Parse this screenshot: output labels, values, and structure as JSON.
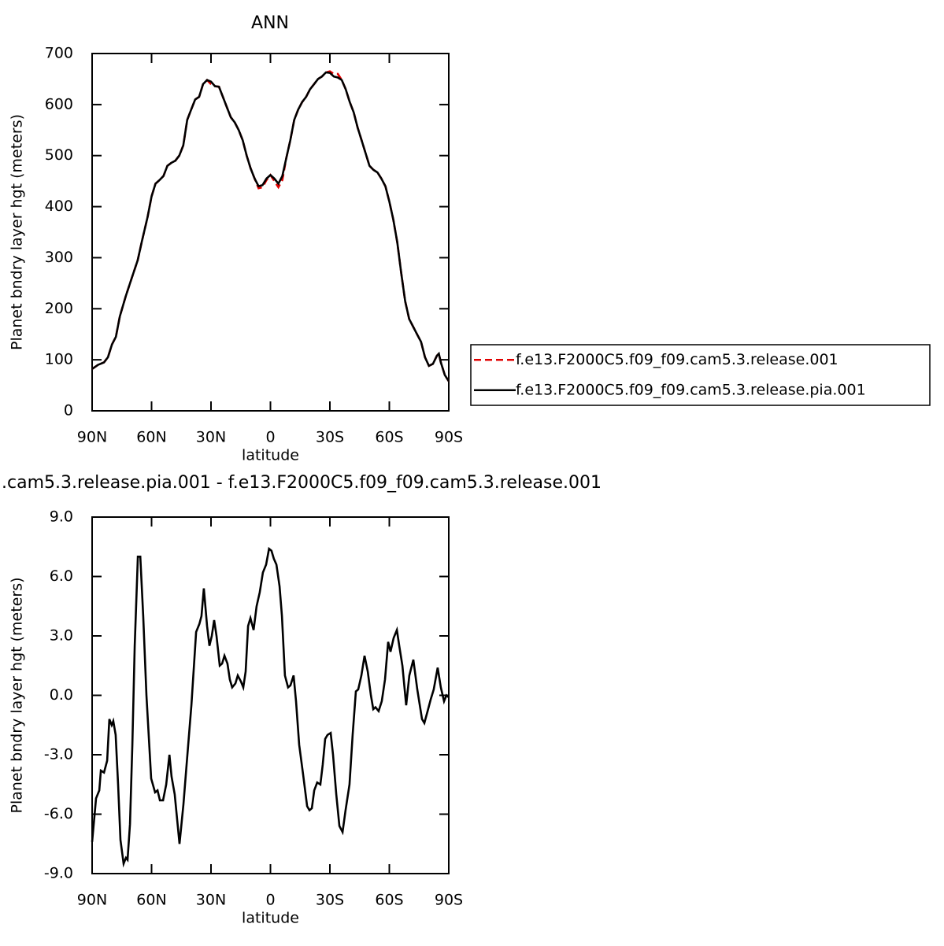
{
  "chart_data": [
    {
      "type": "line",
      "title": "ANN",
      "xlabel": "latitude",
      "ylabel": "Planet bndry layer hgt (meters)",
      "xlim": [
        90,
        -90
      ],
      "xticks": [
        {
          "value": 90,
          "label": "90N"
        },
        {
          "value": 60,
          "label": "60N"
        },
        {
          "value": 30,
          "label": "30N"
        },
        0,
        {
          "value": -30,
          "label": "30S"
        },
        {
          "value": -60,
          "label": "60S"
        },
        {
          "value": -90,
          "label": "90S"
        }
      ],
      "ylim": [
        0,
        700
      ],
      "yticks": [
        0,
        100,
        200,
        300,
        400,
        500,
        600,
        700
      ],
      "legend": "right",
      "x": [
        90,
        87,
        84,
        82,
        80,
        78,
        76,
        73,
        70,
        67,
        65,
        62,
        60,
        58,
        56,
        54,
        52,
        50,
        48,
        46,
        44,
        42,
        40,
        38,
        36,
        34,
        32,
        30,
        28,
        26,
        24,
        22,
        20,
        18,
        16,
        14,
        12,
        10,
        8,
        6,
        4,
        2,
        0,
        -2,
        -4,
        -6,
        -8,
        -10,
        -12,
        -14,
        -16,
        -18,
        -20,
        -22,
        -24,
        -26,
        -28,
        -30,
        -32,
        -34,
        -36,
        -38,
        -40,
        -42,
        -44,
        -46,
        -48,
        -50,
        -52,
        -54,
        -56,
        -58,
        -60,
        -62,
        -64,
        -66,
        -68,
        -70,
        -72,
        -74,
        -76,
        -78,
        -80,
        -82,
        -84,
        -85,
        -86,
        -88,
        -90
      ],
      "series": [
        {
          "name": "f.e13.F2000C5.f09_f09.cam5.3.release.001",
          "color": "#e00000",
          "line_style": "dashed",
          "values": [
            82,
            90,
            95,
            105,
            130,
            145,
            185,
            225,
            260,
            295,
            330,
            380,
            420,
            445,
            452,
            460,
            480,
            486,
            490,
            500,
            520,
            570,
            590,
            610,
            615,
            640,
            648,
            640,
            636,
            635,
            615,
            595,
            575,
            565,
            550,
            530,
            500,
            475,
            455,
            436,
            438,
            452,
            462,
            450,
            438,
            452,
            495,
            530,
            570,
            590,
            605,
            615,
            630,
            640,
            650,
            655,
            663,
            665,
            660,
            660,
            648,
            630,
            605,
            585,
            555,
            530,
            505,
            480,
            472,
            467,
            455,
            440,
            410,
            375,
            330,
            270,
            215,
            180,
            165,
            150,
            135,
            105,
            88,
            92,
            108,
            112,
            95,
            70,
            58
          ]
        },
        {
          "name": "f.e13.F2000C5.f09_f09.cam5.3.release.pia.001",
          "color": "#000000",
          "line_style": "solid",
          "values": [
            82,
            90,
            95,
            105,
            130,
            145,
            185,
            225,
            260,
            295,
            330,
            380,
            420,
            445,
            452,
            460,
            480,
            486,
            490,
            500,
            520,
            570,
            590,
            610,
            615,
            640,
            648,
            645,
            636,
            635,
            615,
            595,
            575,
            565,
            550,
            530,
            500,
            475,
            455,
            440,
            442,
            455,
            462,
            455,
            445,
            460,
            495,
            530,
            570,
            590,
            605,
            615,
            630,
            640,
            650,
            655,
            663,
            662,
            655,
            653,
            648,
            630,
            605,
            585,
            555,
            530,
            505,
            480,
            472,
            467,
            455,
            440,
            410,
            375,
            330,
            270,
            215,
            180,
            165,
            150,
            135,
            105,
            88,
            92,
            108,
            112,
            95,
            70,
            58
          ]
        }
      ]
    },
    {
      "type": "line",
      "title": ".cam5.3.release.pia.001 - f.e13.F2000C5.f09_f09.cam5.3.release.001",
      "xlabel": "latitude",
      "ylabel": "Planet bndry layer hgt (meters)",
      "xlim": [
        90,
        -90
      ],
      "xticks": [
        {
          "value": 90,
          "label": "90N"
        },
        {
          "value": 60,
          "label": "60N"
        },
        {
          "value": 30,
          "label": "30N"
        },
        0,
        {
          "value": -30,
          "label": "30S"
        },
        {
          "value": -60,
          "label": "60S"
        },
        {
          "value": -90,
          "label": "90S"
        }
      ],
      "ylim": [
        -9,
        9
      ],
      "yticks": [
        {
          "value": -9,
          "label": "-9.0"
        },
        {
          "value": -6,
          "label": "-6.0"
        },
        {
          "value": -3,
          "label": "-3.0"
        },
        {
          "value": 0,
          "label": "0.0"
        },
        {
          "value": 3,
          "label": "3.0"
        },
        {
          "value": 6,
          "label": "6.0"
        },
        {
          "value": 9,
          "label": "9.0"
        }
      ],
      "x": [
        90,
        88.0,
        86.4,
        85.6,
        84.0,
        82.4,
        81.3,
        80.1,
        79.3,
        78.1,
        76.9,
        75.7,
        74.1,
        72.9,
        72.1,
        70.9,
        69.7,
        68.5,
        66.9,
        65.7,
        64.2,
        62.6,
        60.2,
        58.2,
        57.0,
        55.8,
        54.2,
        52.6,
        51.0,
        49.9,
        48.3,
        45.9,
        43.9,
        42.3,
        39.9,
        37.5,
        35.9,
        34.8,
        33.6,
        32.0,
        30.8,
        29.6,
        28.4,
        27.2,
        25.6,
        24.4,
        23.2,
        21.7,
        20.5,
        19.3,
        17.7,
        16.5,
        14.9,
        13.7,
        12.5,
        11.3,
        10.1,
        8.5,
        7.0,
        5.4,
        3.8,
        2.2,
        0.7,
        -0.5,
        -1.7,
        -3.0,
        -4.6,
        -5.8,
        -7.3,
        -8.9,
        -10.1,
        -11.7,
        -12.9,
        -14.5,
        -16.5,
        -18.5,
        -19.7,
        -20.9,
        -22.1,
        -23.6,
        -25.2,
        -26.4,
        -27.6,
        -28.8,
        -30.4,
        -31.6,
        -33.2,
        -34.8,
        -36.4,
        -37.9,
        -39.9,
        -41.5,
        -43.1,
        -44.3,
        -45.9,
        -47.5,
        -49.1,
        -50.7,
        -51.9,
        -53.0,
        -54.6,
        -56.2,
        -57.8,
        -59.4,
        -60.6,
        -62.2,
        -63.8,
        -65.0,
        -66.6,
        -68.5,
        -70.1,
        -72.1,
        -74.1,
        -76.5,
        -77.7,
        -79.3,
        -80.9,
        -82.4,
        -84.4,
        -86.0,
        -87.6,
        -88.8,
        -90
      ],
      "series": [
        {
          "color": "#000000",
          "line_style": "solid",
          "values": [
            -7.4,
            -5.2,
            -4.8,
            -3.8,
            -3.9,
            -3.3,
            -1.2,
            -1.5,
            -1.3,
            -2.0,
            -4.5,
            -7.3,
            -8.5,
            -8.2,
            -8.3,
            -6.5,
            -2.5,
            2.5,
            7.0,
            7.0,
            4.0,
            0.0,
            -4.2,
            -4.9,
            -4.8,
            -5.3,
            -5.3,
            -4.5,
            -3.0,
            -4.1,
            -5.0,
            -7.5,
            -5.5,
            -3.5,
            -0.5,
            3.2,
            3.6,
            4.0,
            5.4,
            3.5,
            2.5,
            3.0,
            3.8,
            3.0,
            1.5,
            1.6,
            2.0,
            1.6,
            0.8,
            0.4,
            0.6,
            1.0,
            0.7,
            0.4,
            1.2,
            3.5,
            3.9,
            3.3,
            4.5,
            5.2,
            6.2,
            6.6,
            7.4,
            7.3,
            6.9,
            6.6,
            5.5,
            4.0,
            1.0,
            0.4,
            0.5,
            1.0,
            -0.3,
            -2.5,
            -4.0,
            -5.6,
            -5.8,
            -5.7,
            -4.8,
            -4.4,
            -4.5,
            -3.5,
            -2.2,
            -2.0,
            -1.9,
            -3.0,
            -5.0,
            -6.6,
            -6.9,
            -5.8,
            -4.5,
            -2.0,
            0.2,
            0.3,
            1.0,
            2.0,
            1.2,
            0.0,
            -0.7,
            -0.6,
            -0.8,
            -0.3,
            0.8,
            2.7,
            2.2,
            2.9,
            3.3,
            2.5,
            1.5,
            -0.5,
            1.0,
            1.8,
            0.3,
            -1.2,
            -1.4,
            -0.8,
            -0.2,
            0.3,
            1.4,
            0.4,
            -0.3,
            0.0,
            -0.1
          ]
        }
      ]
    }
  ]
}
